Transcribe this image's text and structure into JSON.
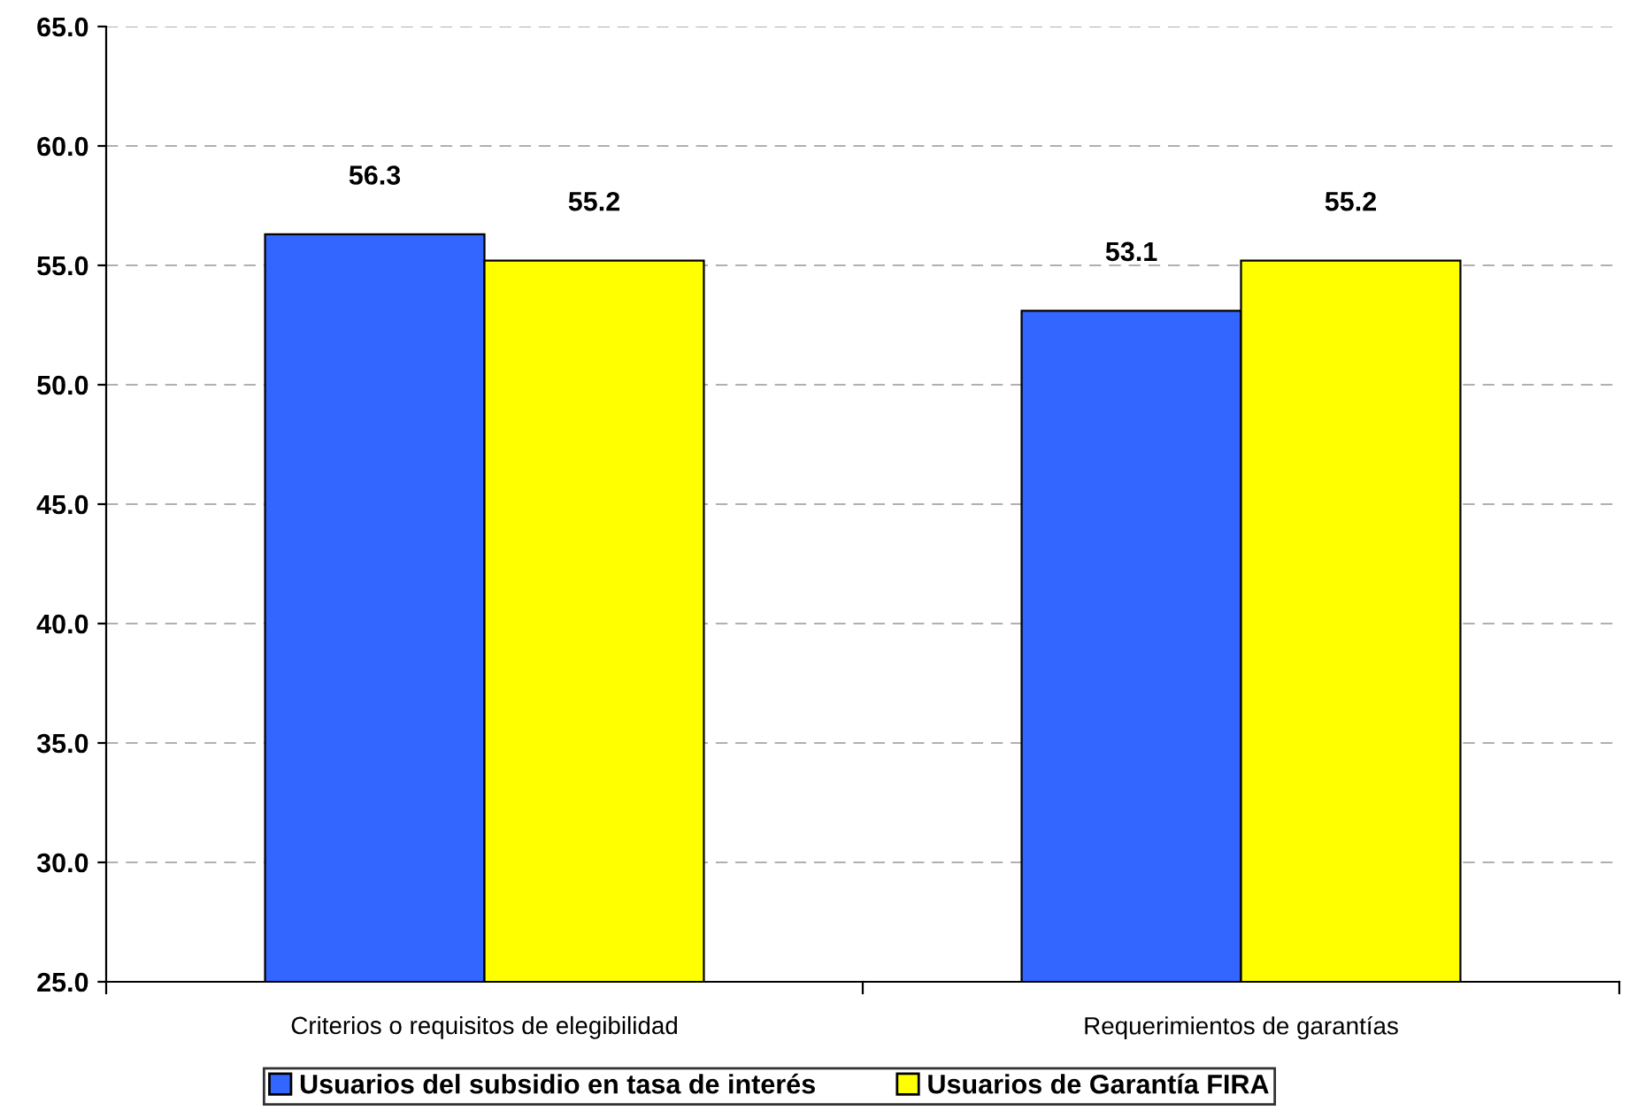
{
  "chart_data": {
    "type": "bar",
    "categories": [
      "Criterios o requisitos de elegibilidad",
      "Requerimientos de garantías"
    ],
    "series": [
      {
        "name": "Usuarios del subsidio en tasa de interés",
        "color": "#3366ff",
        "values": [
          56.3,
          53.1
        ]
      },
      {
        "name": "Usuarios de Garantía FIRA",
        "color": "#ffff00",
        "values": [
          55.2,
          55.2
        ]
      }
    ],
    "ylim": [
      25,
      65
    ],
    "yticks": [
      {
        "value": 25,
        "label": "25.0"
      },
      {
        "value": 30,
        "label": "30.0"
      },
      {
        "value": 35,
        "label": "35.0"
      },
      {
        "value": 40,
        "label": "40.0"
      },
      {
        "value": 45,
        "label": "45.0"
      },
      {
        "value": 50,
        "label": "50.0"
      },
      {
        "value": 55,
        "label": "55.0"
      },
      {
        "value": 60,
        "label": "60.0"
      },
      {
        "value": 65,
        "label": "65.0"
      }
    ],
    "grid": "y",
    "legend": "bottom",
    "data_labels": true
  }
}
